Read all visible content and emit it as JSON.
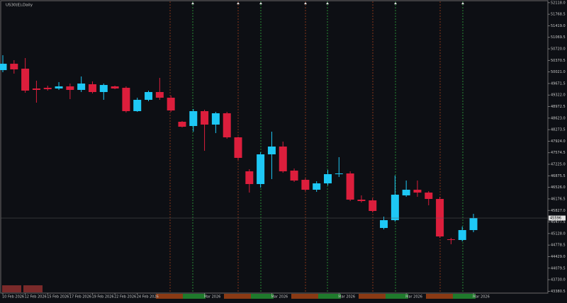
{
  "chart_data": {
    "type": "candlestick",
    "title": "US30(E),Daily",
    "categories": [
      "10 Feb 2026",
      null,
      "12 Feb 2026",
      null,
      "15 Feb 2026",
      null,
      "17 Feb 2026",
      null,
      "19 Feb 2026",
      null,
      "22 Feb 2026",
      null,
      "24 Feb 2026",
      null,
      null,
      null,
      null,
      null,
      "Mar 2026",
      null,
      null,
      null,
      null,
      null,
      "Mar 2026",
      null,
      null,
      null,
      null,
      null,
      "Mar 2026",
      null,
      null,
      null,
      null,
      null,
      "Mar 2026",
      null,
      null,
      null,
      null,
      null,
      "Mar 2026"
    ],
    "open": [
      50077,
      50270,
      50120,
      49520,
      49541,
      49520,
      49584,
      49477,
      49649,
      49413,
      49584,
      49541,
      48834,
      49177,
      49413,
      49241,
      48512,
      48384,
      48834,
      48427,
      48770,
      48041,
      47012,
      46626,
      47526,
      47762,
      47033,
      46754,
      46454,
      46647,
      46926,
      46947,
      46154,
      46132,
      45296,
      45532,
      46283,
      46454,
      46368,
      46175,
      44953,
      44932,
      45232
    ],
    "high": [
      50528,
      50378,
      50442,
      49756,
      49606,
      49713,
      49670,
      49884,
      49734,
      49670,
      49606,
      49584,
      49241,
      49456,
      49842,
      49306,
      48534,
      48898,
      48877,
      48812,
      48812,
      48062,
      47076,
      47590,
      48212,
      47912,
      47097,
      46797,
      46711,
      47054,
      47440,
      47012,
      46283,
      46197,
      45639,
      46883,
      46733,
      46733,
      46411,
      46240,
      44996,
      45339,
      45725
    ],
    "low": [
      50013,
      49970,
      49391,
      49091,
      49456,
      49477,
      49198,
      49413,
      49370,
      49177,
      49499,
      48791,
      48812,
      49134,
      49177,
      48812,
      48341,
      48212,
      47633,
      48169,
      47998,
      47355,
      46368,
      46518,
      46776,
      46969,
      46690,
      46411,
      46390,
      46583,
      46840,
      46111,
      46068,
      45768,
      45253,
      45489,
      46240,
      46240,
      45982,
      44996,
      44803,
      44889,
      45168
    ],
    "close": [
      50270,
      50099,
      49456,
      49477,
      49499,
      49584,
      49477,
      49670,
      49413,
      49627,
      49520,
      48834,
      49177,
      49413,
      49241,
      48855,
      48362,
      48834,
      48427,
      48770,
      48041,
      47419,
      46626,
      47526,
      47762,
      47012,
      46733,
      46454,
      46647,
      46926,
      46947,
      46154,
      46111,
      45811,
      45532,
      46304,
      46454,
      46368,
      46175,
      45039,
      44932,
      45232,
      45596
    ],
    "up_color": "#1ec8f5",
    "down_color": "#dc1e3c",
    "current_price": 45596,
    "ylim": [
      43324,
      52200
    ],
    "yticks": [
      {
        "value": 52118,
        "label": "52118.0"
      },
      51768.5,
      {
        "value": 51419,
        "label": "51419.0"
      },
      51069.5,
      {
        "value": 50720,
        "label": "50720.0"
      },
      50370.5,
      {
        "value": 50021,
        "label": "50021.0"
      },
      49671.5,
      {
        "value": 49322,
        "label": "49322.0"
      },
      48972.5,
      {
        "value": 48623,
        "label": "48623.0"
      },
      48273.5,
      {
        "value": 47924,
        "label": "47924.0"
      },
      47574.5,
      {
        "value": 47225,
        "label": "47225.0"
      },
      46875.5,
      {
        "value": 46526,
        "label": "46526.0"
      },
      46176.5,
      {
        "value": 45827,
        "label": "45827.0"
      },
      45477.5,
      {
        "value": 45128,
        "label": "45128.0"
      },
      44778.5,
      {
        "value": 44429,
        "label": "44429.0"
      },
      44079.5,
      {
        "value": 43730,
        "label": "43730.0"
      },
      43380.5
    ]
  }
}
